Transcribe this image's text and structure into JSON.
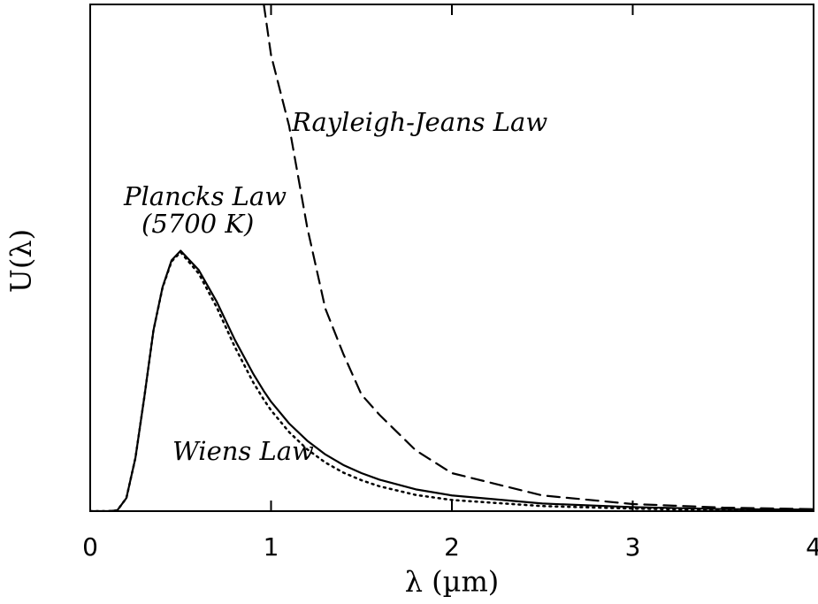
{
  "chart_data": {
    "type": "line",
    "xlabel": "λ (µm)",
    "ylabel": "U(λ)",
    "x": [
      0,
      0.1,
      0.15,
      0.2,
      0.25,
      0.3,
      0.35,
      0.4,
      0.45,
      0.5,
      0.6,
      0.7,
      0.8,
      0.9,
      0.96,
      1.0,
      1.1,
      1.2,
      1.3,
      1.4,
      1.5,
      1.6,
      1.8,
      2.0,
      2.5,
      3.0,
      3.5,
      4.0
    ],
    "series": [
      {
        "name": "Plancks Law",
        "color": "#000000",
        "dash": "solid",
        "values": [
          0,
          0,
          0.16,
          2.57,
          10.5,
          22.7,
          35.7,
          44.2,
          49.5,
          51.4,
          47.6,
          41.3,
          33.8,
          27.2,
          23.7,
          21.6,
          17.3,
          13.9,
          11.2,
          9.1,
          7.5,
          6.2,
          4.3,
          3.1,
          1.5,
          0.8,
          0.4,
          0.3
        ]
      },
      {
        "name": "Wiens Law",
        "color": "#000000",
        "dash": "dotted",
        "values": [
          0,
          0,
          0.16,
          2.57,
          10.5,
          22.7,
          35.7,
          44.1,
          49.3,
          51.1,
          46.9,
          40.2,
          32.4,
          25.5,
          22.0,
          19.9,
          15.6,
          12.2,
          9.6,
          7.6,
          6.1,
          4.9,
          3.2,
          2.2,
          1.0,
          0.5,
          0.2,
          0.1
        ]
      },
      {
        "name": "Rayleigh-Jeans Law",
        "color": "#000000",
        "dash": "dashed",
        "values": [
          null,
          null,
          null,
          null,
          null,
          null,
          null,
          null,
          null,
          null,
          null,
          null,
          null,
          null,
          100,
          90,
          76,
          56,
          40,
          31,
          23,
          19,
          12,
          7.5,
          3.1,
          1.4,
          0.7,
          0.4
        ]
      }
    ],
    "annotations": [
      "(5700 K)"
    ],
    "xlim": [
      0,
      4
    ],
    "xticks": [
      0,
      1,
      2,
      3,
      4
    ],
    "ylim": [
      0,
      100
    ]
  }
}
